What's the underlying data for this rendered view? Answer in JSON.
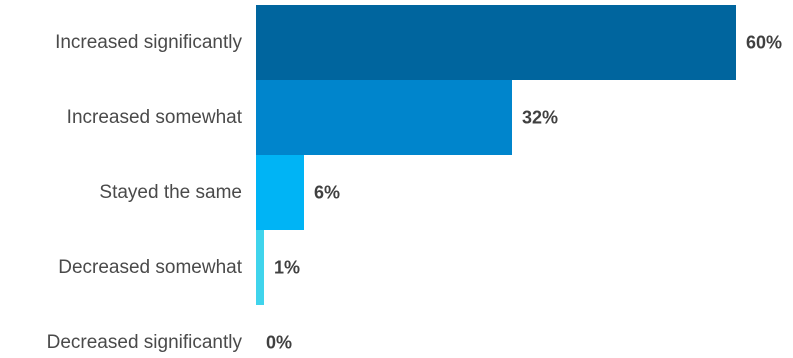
{
  "chart_data": {
    "type": "bar",
    "orientation": "horizontal",
    "categories": [
      "Increased significantly",
      "Increased somewhat",
      "Stayed the same",
      "Decreased somewhat",
      "Decreased significantly"
    ],
    "values": [
      60,
      32,
      6,
      1,
      0
    ],
    "value_labels": [
      "60%",
      "32%",
      "6%",
      "1%",
      "0%"
    ],
    "unit": "%",
    "xlim": [
      0,
      60
    ],
    "title": "",
    "xlabel": "",
    "ylabel": "",
    "grid": false,
    "legend": "none",
    "colors": [
      "#00659e",
      "#0085cc",
      "#00b4f5",
      "#40d4ec",
      "#40d4ec"
    ]
  }
}
